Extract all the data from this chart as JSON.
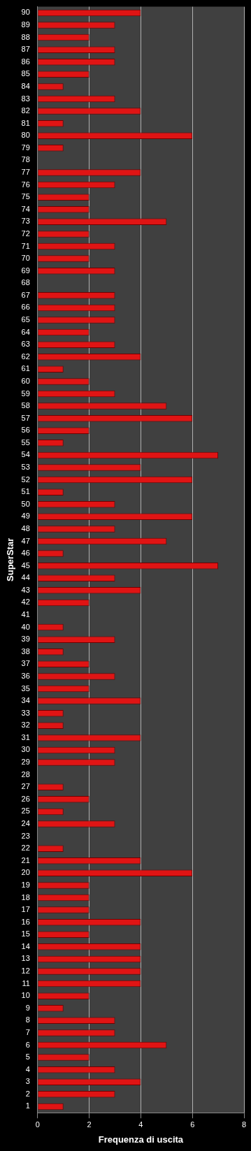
{
  "chart_data": {
    "type": "bar",
    "orientation": "horizontal",
    "xlabel": "Frequenza di uscita",
    "ylabel": "SuperStar",
    "categories": [
      "90",
      "89",
      "88",
      "87",
      "86",
      "85",
      "84",
      "83",
      "82",
      "81",
      "80",
      "79",
      "78",
      "77",
      "76",
      "75",
      "74",
      "73",
      "72",
      "71",
      "70",
      "69",
      "68",
      "67",
      "66",
      "65",
      "64",
      "63",
      "62",
      "61",
      "60",
      "59",
      "58",
      "57",
      "56",
      "55",
      "54",
      "53",
      "52",
      "51",
      "50",
      "49",
      "48",
      "47",
      "46",
      "45",
      "44",
      "43",
      "42",
      "41",
      "40",
      "39",
      "38",
      "37",
      "36",
      "35",
      "34",
      "33",
      "32",
      "31",
      "30",
      "29",
      "28",
      "27",
      "26",
      "25",
      "24",
      "23",
      "22",
      "21",
      "20",
      "19",
      "18",
      "17",
      "16",
      "15",
      "14",
      "13",
      "12",
      "11",
      "10",
      "9",
      "8",
      "7",
      "6",
      "5",
      "4",
      "3",
      "2",
      "1"
    ],
    "values": [
      4,
      3,
      2,
      3,
      3,
      2,
      1,
      3,
      4,
      1,
      6,
      1,
      0,
      4,
      3,
      2,
      2,
      5,
      2,
      3,
      2,
      3,
      0,
      3,
      3,
      3,
      2,
      3,
      4,
      1,
      2,
      3,
      5,
      6,
      2,
      1,
      7,
      4,
      6,
      1,
      3,
      6,
      3,
      5,
      1,
      7,
      3,
      4,
      2,
      0,
      1,
      3,
      1,
      2,
      3,
      2,
      4,
      1,
      1,
      4,
      3,
      3,
      0,
      1,
      2,
      1,
      3,
      0,
      1,
      4,
      6,
      2,
      2,
      2,
      4,
      2,
      4,
      4,
      4,
      4,
      2,
      1,
      3,
      3,
      5,
      2,
      3,
      4,
      3,
      1
    ],
    "color": "#e01414",
    "xlim": [
      0,
      8
    ],
    "xticks": [
      0,
      2,
      4,
      6,
      8
    ],
    "grid": "x"
  }
}
